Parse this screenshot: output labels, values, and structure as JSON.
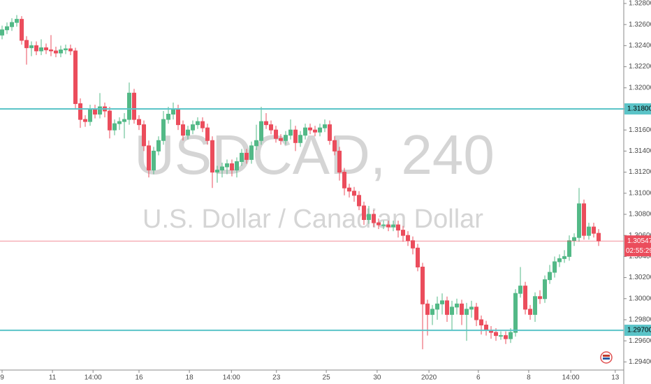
{
  "chart_data": {
    "type": "candlestick",
    "title": "USDCAD, 240",
    "subtitle": "U.S. Dollar / Canadian Dollar",
    "up_color": "#53b987",
    "down_color": "#eb4d5c",
    "open": [
      1.325,
      1.3255,
      1.3258,
      1.3262,
      1.3265,
      1.3245,
      1.3238,
      1.324,
      1.3235,
      1.3238,
      1.3236,
      1.3235,
      1.3233,
      1.3236,
      1.3237,
      1.3235,
      1.3185,
      1.317,
      1.3168,
      1.318,
      1.3175,
      1.3182,
      1.3178,
      1.316,
      1.3166,
      1.3168,
      1.317,
      1.3195,
      1.317,
      1.3165,
      1.3145,
      1.3122,
      1.314,
      1.315,
      1.317,
      1.3175,
      1.318,
      1.3165,
      1.3155,
      1.316,
      1.3165,
      1.3168,
      1.3162,
      1.315,
      1.312,
      1.3122,
      1.3125,
      1.3128,
      1.3122,
      1.313,
      1.3138,
      1.3132,
      1.3145,
      1.315,
      1.3168,
      1.3165,
      1.316,
      1.3152,
      1.315,
      1.3155,
      1.316,
      1.3148,
      1.3155,
      1.3162,
      1.316,
      1.3158,
      1.3162,
      1.3165,
      1.315,
      1.314,
      1.312,
      1.3105,
      1.3102,
      1.3098,
      1.3088,
      1.3075,
      1.308,
      1.3072,
      1.307,
      1.307,
      1.3068,
      1.307,
      1.3065,
      1.306,
      1.3055,
      1.3048,
      1.303,
      1.2995,
      1.2985,
      1.299,
      1.2995,
      1.2998,
      1.2985,
      1.2992,
      1.2995,
      1.2985,
      1.299,
      1.2992,
      1.298,
      1.2975,
      1.297,
      1.2968,
      1.2965,
      1.2965,
      1.2962,
      1.2968,
      1.3005,
      1.3012,
      1.299,
      1.2985,
      1.3002,
      1.3,
      1.3018,
      1.3025,
      1.3035,
      1.3038,
      1.304,
      1.3055,
      1.3058,
      1.309,
      1.306,
      1.3068,
      1.3062
    ],
    "high": [
      1.3259,
      1.3262,
      1.3266,
      1.3269,
      1.3268,
      1.3249,
      1.3244,
      1.3244,
      1.3246,
      1.3242,
      1.325,
      1.3239,
      1.324,
      1.3241,
      1.3241,
      1.3238,
      1.319,
      1.3174,
      1.3184,
      1.3184,
      1.3195,
      1.3186,
      1.3182,
      1.317,
      1.3172,
      1.3176,
      1.3205,
      1.3199,
      1.3174,
      1.3169,
      1.315,
      1.3144,
      1.3154,
      1.3178,
      1.3182,
      1.3186,
      1.3184,
      1.3169,
      1.3164,
      1.3169,
      1.3172,
      1.3172,
      1.3166,
      1.3154,
      1.3126,
      1.3129,
      1.3132,
      1.3132,
      1.3134,
      1.3142,
      1.3142,
      1.3149,
      1.3165,
      1.3182,
      1.3176,
      1.3169,
      1.3164,
      1.3156,
      1.3159,
      1.317,
      1.3164,
      1.3159,
      1.3166,
      1.3166,
      1.3164,
      1.3166,
      1.317,
      1.3169,
      1.3154,
      1.3144,
      1.3124,
      1.3109,
      1.3106,
      1.3102,
      1.3092,
      1.3088,
      1.3084,
      1.3076,
      1.3074,
      1.3074,
      1.3074,
      1.3074,
      1.3069,
      1.3064,
      1.3059,
      1.3052,
      1.3034,
      1.2999,
      1.2994,
      1.3002,
      1.3005,
      1.3002,
      1.2998,
      1.3,
      1.2999,
      1.2996,
      1.2998,
      1.2996,
      1.2984,
      1.2979,
      1.2974,
      1.2972,
      1.2969,
      1.2969,
      1.2972,
      1.3009,
      1.303,
      1.3016,
      1.2994,
      1.3006,
      1.3008,
      1.3022,
      1.3032,
      1.304,
      1.3042,
      1.3046,
      1.306,
      1.3062,
      1.3105,
      1.3094,
      1.3072,
      1.3072,
      1.3066
    ],
    "low": [
      1.3246,
      1.3251,
      1.3254,
      1.3258,
      1.3241,
      1.3222,
      1.323,
      1.3231,
      1.3231,
      1.3232,
      1.323,
      1.3229,
      1.3229,
      1.3232,
      1.3231,
      1.318,
      1.3162,
      1.3163,
      1.3164,
      1.3171,
      1.3171,
      1.3172,
      1.3152,
      1.3155,
      1.316,
      1.3152,
      1.3165,
      1.3166,
      1.316,
      1.314,
      1.3115,
      1.3118,
      1.3136,
      1.3146,
      1.3166,
      1.317,
      1.316,
      1.315,
      1.3151,
      1.3156,
      1.3161,
      1.3158,
      1.3146,
      1.3105,
      1.311,
      1.3115,
      1.3118,
      1.3116,
      1.3115,
      1.3126,
      1.3128,
      1.3128,
      1.3141,
      1.3146,
      1.3161,
      1.3156,
      1.3148,
      1.3146,
      1.3146,
      1.3151,
      1.314,
      1.3144,
      1.3151,
      1.3156,
      1.3154,
      1.3154,
      1.3158,
      1.3146,
      1.3136,
      1.3112,
      1.3098,
      1.3096,
      1.3092,
      1.3084,
      1.307,
      1.3071,
      1.3068,
      1.3066,
      1.3066,
      1.3064,
      1.3064,
      1.3058,
      1.3054,
      1.305,
      1.3042,
      1.3026,
      1.2952,
      1.2965,
      1.2975,
      1.298,
      1.2985,
      1.2978,
      1.297,
      1.2985,
      1.2975,
      1.296,
      1.2982,
      1.2974,
      1.2966,
      1.2965,
      1.2962,
      1.296,
      1.2961,
      1.2957,
      1.2958,
      1.2964,
      1.3001,
      1.2985,
      1.298,
      1.2978,
      1.2995,
      1.2996,
      1.3014,
      1.302,
      1.303,
      1.3034,
      1.3036,
      1.305,
      1.3054,
      1.3056,
      1.3056,
      1.3058,
      1.305
    ],
    "close": [
      1.3255,
      1.3258,
      1.3262,
      1.3265,
      1.3245,
      1.3238,
      1.324,
      1.3235,
      1.3238,
      1.3236,
      1.3235,
      1.3233,
      1.3236,
      1.3237,
      1.3235,
      1.3185,
      1.317,
      1.3168,
      1.318,
      1.3175,
      1.3182,
      1.3178,
      1.316,
      1.3166,
      1.3168,
      1.317,
      1.3195,
      1.317,
      1.3165,
      1.3145,
      1.3122,
      1.314,
      1.315,
      1.317,
      1.3175,
      1.318,
      1.3165,
      1.3155,
      1.316,
      1.3165,
      1.3168,
      1.3162,
      1.315,
      1.312,
      1.3122,
      1.3125,
      1.3128,
      1.3122,
      1.313,
      1.3138,
      1.3132,
      1.3145,
      1.315,
      1.3168,
      1.3165,
      1.316,
      1.3152,
      1.315,
      1.3155,
      1.316,
      1.3148,
      1.3155,
      1.3162,
      1.316,
      1.3158,
      1.3162,
      1.3165,
      1.315,
      1.314,
      1.312,
      1.3105,
      1.3102,
      1.3098,
      1.3088,
      1.3075,
      1.308,
      1.3072,
      1.307,
      1.307,
      1.3068,
      1.307,
      1.3065,
      1.306,
      1.3055,
      1.3048,
      1.303,
      1.2995,
      1.2985,
      1.299,
      1.2995,
      1.2998,
      1.2985,
      1.2992,
      1.2995,
      1.2985,
      1.299,
      1.2992,
      1.298,
      1.2975,
      1.297,
      1.2968,
      1.2965,
      1.2965,
      1.2962,
      1.2968,
      1.3005,
      1.3012,
      1.299,
      1.2985,
      1.3002,
      1.3,
      1.3018,
      1.3025,
      1.3035,
      1.3038,
      1.304,
      1.3055,
      1.3058,
      1.309,
      1.306,
      1.3068,
      1.3062,
      1.30547
    ],
    "xlim": [
      -0.43,
      127.14
    ],
    "ylim": [
      1.29323,
      1.32833
    ],
    "xticks": [
      {
        "value": 0,
        "label": "9"
      },
      {
        "value": 10.3,
        "label": "11"
      },
      {
        "value": 18.6,
        "label": "14:00"
      },
      {
        "value": 28,
        "label": "16"
      },
      {
        "value": 38.3,
        "label": "18"
      },
      {
        "value": 46.9,
        "label": "14:00"
      },
      {
        "value": 56.1,
        "label": "23"
      },
      {
        "value": 66.3,
        "label": "25"
      },
      {
        "value": 76.7,
        "label": "30"
      },
      {
        "value": 87.3,
        "label": "2020"
      },
      {
        "value": 97.4,
        "label": "6"
      },
      {
        "value": 107.7,
        "label": "8"
      },
      {
        "value": 116.3,
        "label": "14:00"
      },
      {
        "value": 125.4,
        "label": "13"
      }
    ],
    "yticks": [
      {
        "value": 1.294,
        "label": "1.29400"
      },
      {
        "value": 1.296,
        "label": "1.29600"
      },
      {
        "value": 1.298,
        "label": "1.29800"
      },
      {
        "value": 1.3,
        "label": "1.30000"
      },
      {
        "value": 1.302,
        "label": "1.30200"
      },
      {
        "value": 1.304,
        "label": "1.30400"
      },
      {
        "value": 1.306,
        "label": "1.30600"
      },
      {
        "value": 1.308,
        "label": "1.30800"
      },
      {
        "value": 1.31,
        "label": "1.31000"
      },
      {
        "value": 1.312,
        "label": "1.31200"
      },
      {
        "value": 1.314,
        "label": "1.31400"
      },
      {
        "value": 1.316,
        "label": "1.31600"
      },
      {
        "value": 1.318,
        "label": "1.31800"
      },
      {
        "value": 1.32,
        "label": "1.32000"
      },
      {
        "value": 1.322,
        "label": "1.32200"
      },
      {
        "value": 1.324,
        "label": "1.32400"
      },
      {
        "value": 1.326,
        "label": "1.32600"
      },
      {
        "value": 1.328,
        "label": "1.32800"
      }
    ],
    "hlines": [
      {
        "value": 1.318,
        "label": "1.31800"
      },
      {
        "value": 1.297,
        "label": "1.29700"
      }
    ],
    "hline_color": "#5bc4c8",
    "price_line": {
      "value": 1.30547,
      "countdown": "02:55:29"
    }
  }
}
